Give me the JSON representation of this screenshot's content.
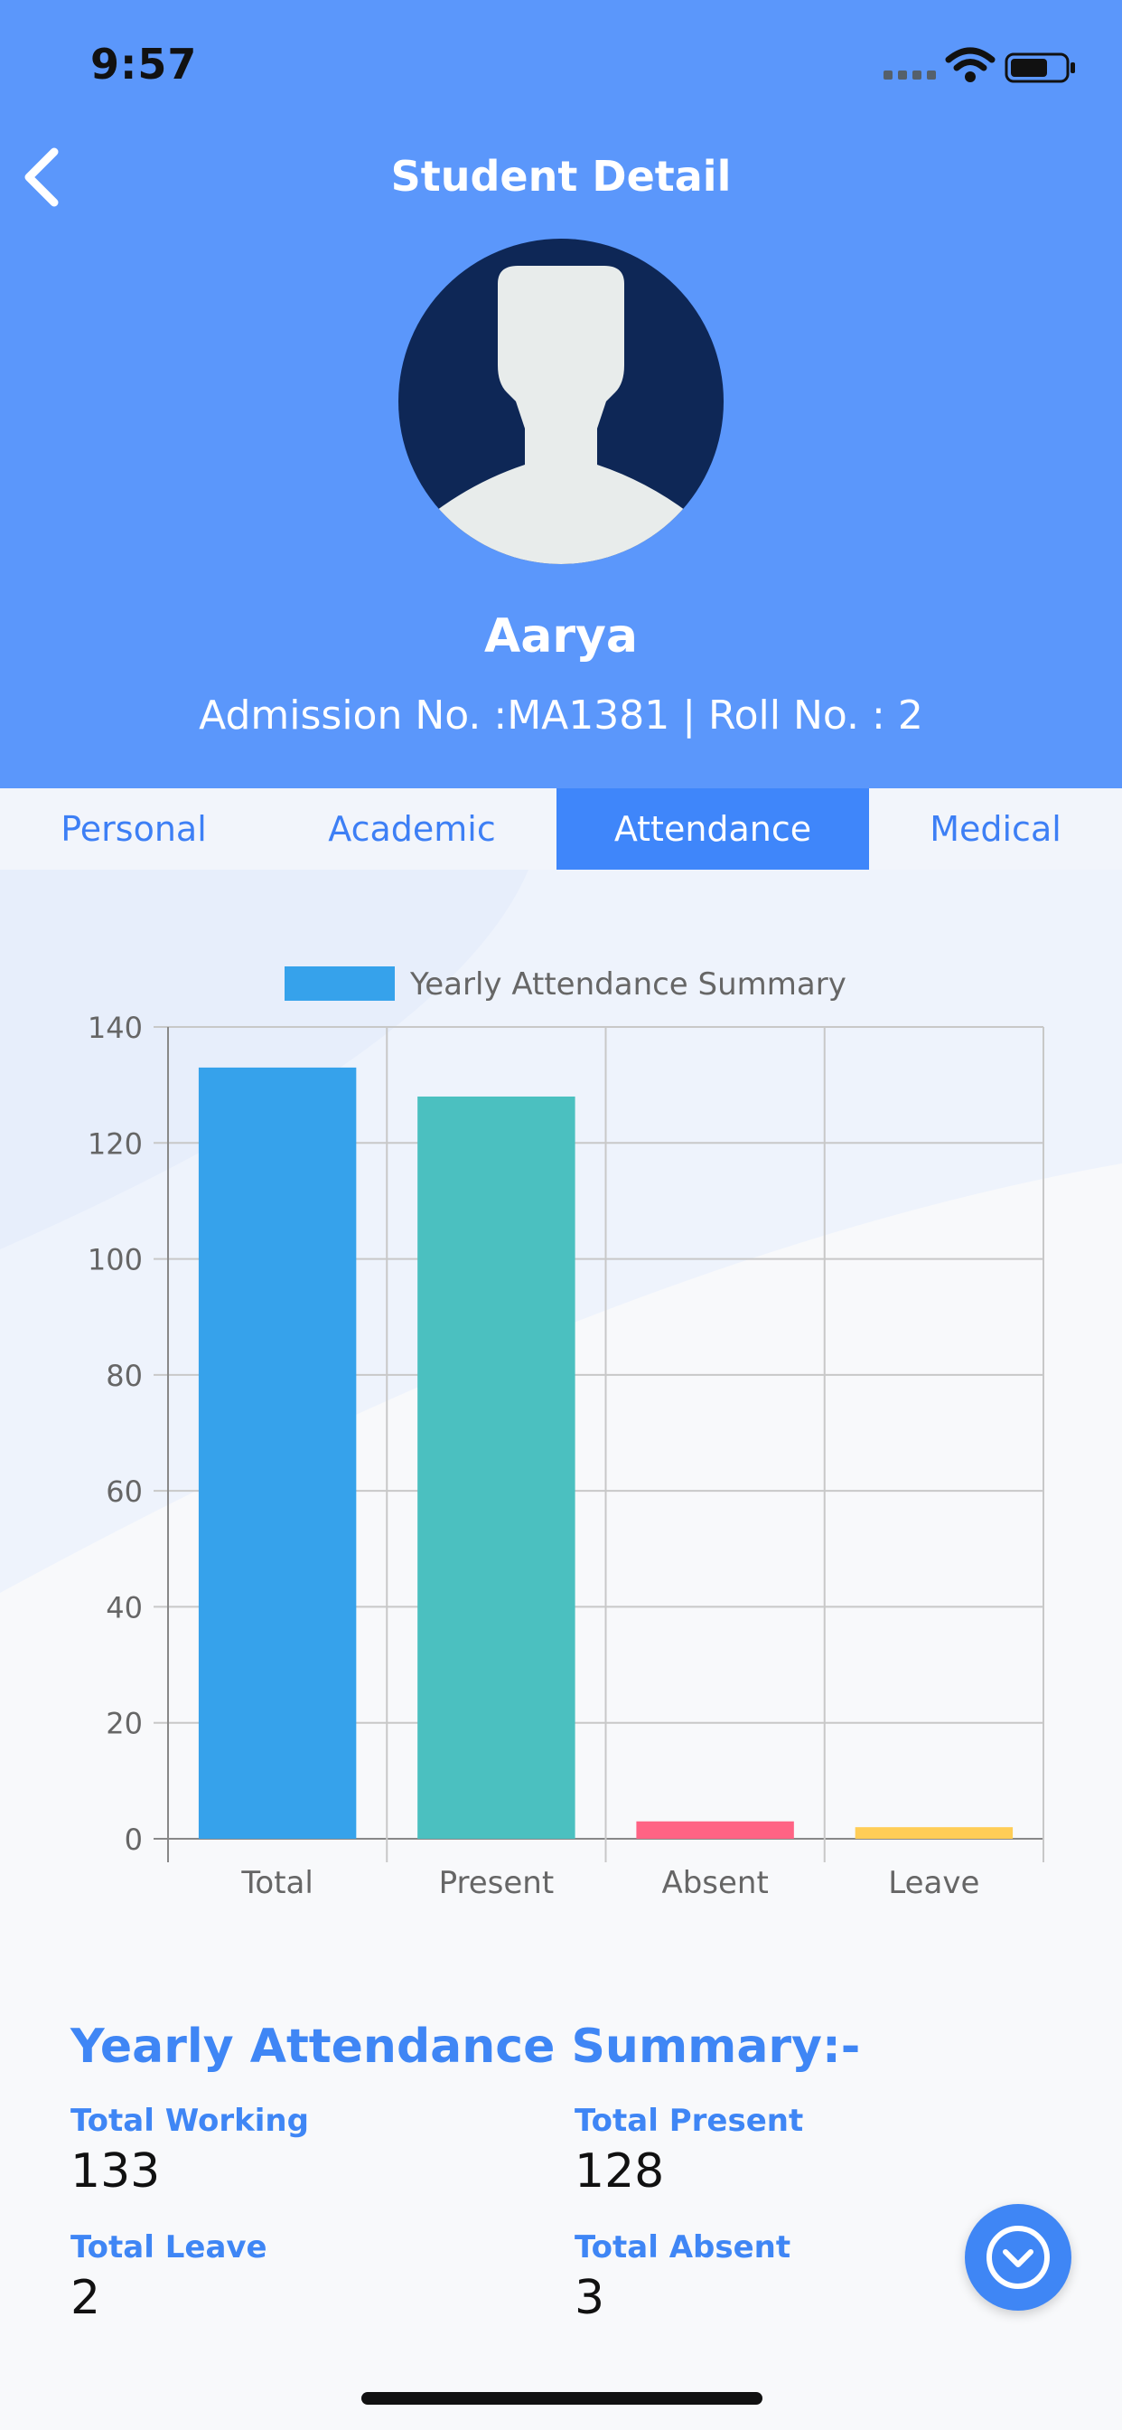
{
  "status_bar": {
    "time": "9:57"
  },
  "header": {
    "title": "Student Detail",
    "student_name": "Aarya",
    "admission_line": "Admission No. :MA1381 | Roll No. : 2"
  },
  "tabs": [
    {
      "label": "Personal",
      "active": false
    },
    {
      "label": "Academic",
      "active": false
    },
    {
      "label": "Attendance",
      "active": true
    },
    {
      "label": "Medical",
      "active": false
    }
  ],
  "chart_data": {
    "type": "bar",
    "legend": "Yearly Attendance Summary",
    "categories": [
      "Total",
      "Present",
      "Absent",
      "Leave"
    ],
    "values": [
      133,
      128,
      3,
      2
    ],
    "colors": [
      "#36a2eb",
      "#4bc0c0",
      "#ff6384",
      "#ffcd56"
    ],
    "ylim": [
      0,
      140
    ],
    "yticks": [
      0,
      20,
      40,
      60,
      80,
      100,
      120,
      140
    ],
    "grid": true,
    "legend_position": "top"
  },
  "summary": {
    "title": "Yearly Attendance Summary:-",
    "total_working_label": "Total Working",
    "total_working": "133",
    "total_present_label": "Total Present",
    "total_present": "128",
    "total_leave_label": "Total Leave",
    "total_leave": "2",
    "total_absent_label": "Total Absent",
    "total_absent": "3"
  },
  "colors": {
    "header_bg": "#5b97fb",
    "accent": "#3f86f5",
    "avatar_bg": "#0e2756"
  },
  "icons": {
    "back": "chevron-left-icon",
    "fab": "chevron-down-circle-icon"
  }
}
